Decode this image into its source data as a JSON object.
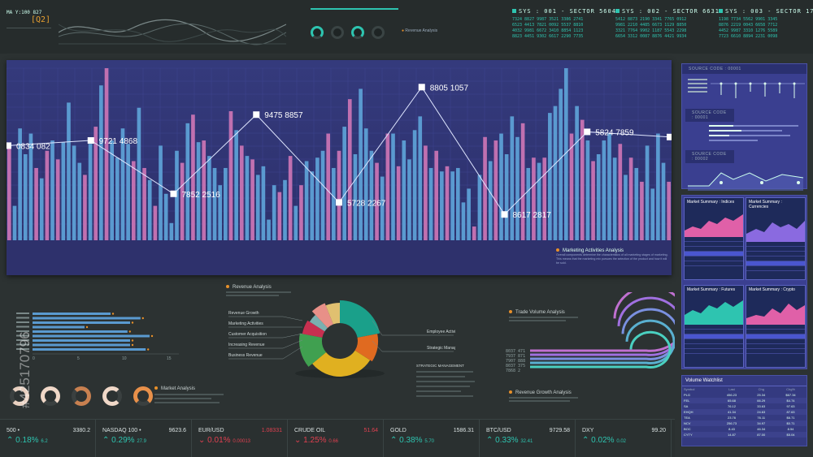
{
  "header": {
    "ma_label": "MA",
    "ma_value": "Y:100 827",
    "q_label": "[Q2]",
    "revenue_analysis_top": "Revenue Analysis",
    "sys1": "SYS : 001 - SECTOR 56042",
    "sys2": "SYS : 002 - SECTOR 66317",
    "sys3": "SYS : 003 - SECTOR 17359"
  },
  "main_chart": {
    "caption_title": "Marketing Activities Analysis",
    "caption_text": "Overall components determine the characteristics of all marketing stages of marketing. This means that the marketing mix pursues the selection of the product and how it will be sold."
  },
  "chart_data": {
    "type": "bar",
    "points": [
      {
        "x": 0,
        "label": "0834 082"
      },
      {
        "x": 1,
        "label": "9721 4868"
      },
      {
        "x": 2,
        "label": "7852 2516"
      },
      {
        "x": 3,
        "label": "9475 8857"
      },
      {
        "x": 4,
        "label": "5728 2267"
      },
      {
        "x": 5,
        "label": "8805 1057"
      },
      {
        "x": 6,
        "label": "8617 2817"
      },
      {
        "x": 7,
        "label": "5824 7859"
      }
    ],
    "line_values": [
      0.55,
      0.58,
      0.27,
      0.73,
      0.22,
      0.89,
      0.15,
      0.63,
      0.6
    ],
    "bars": [
      0.55,
      0.2,
      0.65,
      0.5,
      0.62,
      0.42,
      0.36,
      0.52,
      0.58,
      0.47,
      0.57,
      0.8,
      0.55,
      0.45,
      0.38,
      0.56,
      0.66,
      0.9,
      1.0,
      0.58,
      0.48,
      0.65,
      0.56,
      0.46,
      0.77,
      0.42,
      0.35,
      0.2,
      0.55,
      0.27,
      0.1,
      0.52,
      0.45,
      0.68,
      0.73,
      0.57,
      0.58,
      0.49,
      0.42,
      0.32,
      0.42,
      0.75,
      0.64,
      0.55,
      0.49,
      0.47,
      0.38,
      0.43,
      0.12,
      0.32,
      0.28,
      0.35,
      0.49,
      0.2,
      0.32,
      0.46,
      0.4,
      0.48,
      0.52,
      0.62,
      0.42,
      0.52,
      0.66,
      0.82,
      0.5,
      0.88,
      0.65,
      0.52,
      0.45,
      0.37,
      0.62,
      0.62,
      0.43,
      0.58,
      0.47,
      0.64,
      0.72,
      0.55,
      0.42,
      0.52,
      0.4,
      0.43,
      0.4,
      0.42,
      0.22,
      0.3,
      0.08,
      0.38,
      0.6,
      0.46,
      0.58,
      0.62,
      0.5,
      0.72,
      0.6,
      0.68,
      0.42,
      0.48,
      0.45,
      0.48,
      0.74,
      0.78,
      0.88,
      1.0,
      0.62,
      0.78,
      0.7,
      0.58,
      0.46,
      0.5,
      0.58,
      0.62,
      0.48,
      0.56,
      0.38,
      0.48,
      0.42,
      0.34,
      0.55,
      0.3,
      0.62,
      0.45,
      0.34
    ]
  },
  "right_panels": {
    "source1": "SOURCE CODE : 00001",
    "source2": "SOURCE CODE : 00001",
    "source3": "SOURCE CODE : 00002",
    "indices": "Market Summary : Indices",
    "currencies": "Market Summary : Currencies",
    "futures": "Market Summary : Futures",
    "crypto": "Market Summary : Crypto"
  },
  "revenue_analysis": {
    "title": "Revenue Analysis",
    "left_labels": [
      "Revenue Growth",
      "Marketing Activities",
      "Customer Acquisition",
      "Increasing Revenue",
      "Business Revenue"
    ],
    "right_labels": [
      "Employee Activities",
      "Strategic Management"
    ],
    "strategic_title": "STRATEGIC MANAGEMENT",
    "slices": [
      {
        "value": 22,
        "color": "#1aa08a"
      },
      {
        "value": 12,
        "color": "#e06a20"
      },
      {
        "value": 30,
        "color": "#e0b020"
      },
      {
        "value": 14,
        "color": "#40a050"
      },
      {
        "value": 6,
        "color": "#c83050"
      },
      {
        "value": 4,
        "color": "#7ab0b0"
      },
      {
        "value": 6,
        "color": "#e89088"
      },
      {
        "value": 6,
        "color": "#e0c070"
      }
    ]
  },
  "hbars": {
    "values": [
      0.6,
      0.83,
      0.75,
      0.4,
      0.73,
      0.9,
      0.75,
      0.75,
      0.87
    ],
    "axis": [
      "0",
      "5",
      "10",
      "15"
    ]
  },
  "market_analysis": {
    "title": "Market Analysis"
  },
  "trade_volume": {
    "title": "Trade Volume Analysis",
    "values": [
      "8037 471",
      "7937 871",
      "7907 888",
      "8037 375",
      "7868 2"
    ],
    "growth_title": "Revenue Growth Analysis"
  },
  "volume_watchlist": {
    "title": "Volume Watchlist",
    "headers": [
      "Symbol",
      "Last",
      "Chg",
      "Chg%"
    ],
    "rows": [
      [
        "PLG",
        "456.23",
        "25.34",
        "$67.34"
      ],
      [
        "FEL",
        "65.68",
        "66.29",
        "$4.74"
      ],
      [
        "SA",
        "76.12",
        "33.63",
        "97.63"
      ],
      [
        "EHQH",
        "41.34",
        "24.63",
        "87.63"
      ],
      [
        "TEA",
        "23.76",
        "76.11",
        "$6.71"
      ],
      [
        "NCV",
        "256.73",
        "34.97",
        "$0.71"
      ],
      [
        "BOC",
        "8.43",
        "46.34",
        "8.54"
      ],
      [
        "CYTY",
        "14.87",
        "87.00",
        "$5.04"
      ]
    ]
  },
  "ticker": [
    {
      "name": "500",
      "dot": "•",
      "value": "3380.2",
      "change": "0.18%",
      "sub": "6.2",
      "dir": "up"
    },
    {
      "name": "NASDAQ 100",
      "dot": "•",
      "value": "9623.6",
      "change": "0.29%",
      "sub": "27.9",
      "dir": "up"
    },
    {
      "name": "EUR/USD",
      "dot": "",
      "value": "1.08331",
      "change": "0.01%",
      "sub": "0.00013",
      "dir": "dn"
    },
    {
      "name": "CRUDE OIL",
      "dot": "",
      "value": "51.64",
      "change": "1.25%",
      "sub": "0.66",
      "dir": "dn"
    },
    {
      "name": "GOLD",
      "dot": "",
      "value": "1586.31",
      "change": "0.38%",
      "sub": "5.70",
      "dir": "up"
    },
    {
      "name": "BTC/USD",
      "dot": "",
      "value": "9729.58",
      "change": "0.33%",
      "sub": "32.41",
      "dir": "up"
    },
    {
      "name": "DXY",
      "dot": "",
      "value": "99.20",
      "change": "0.02%",
      "sub": "0.02",
      "dir": "up"
    }
  ],
  "watermark": {
    "text": "Adobe Stock",
    "id": "#425170796"
  }
}
